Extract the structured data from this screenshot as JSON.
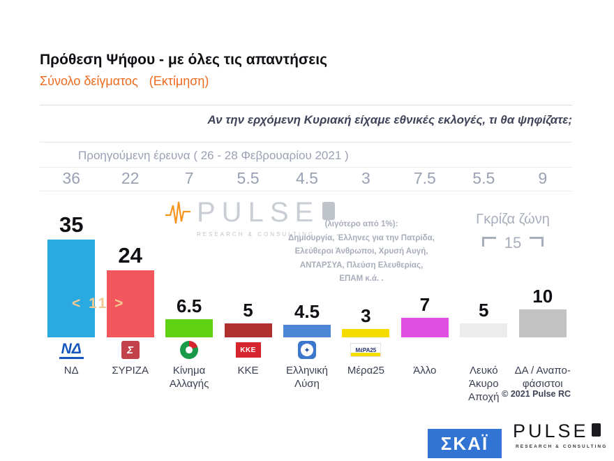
{
  "header": {
    "title": "Πρόθεση Ψήφου - με όλες τις απαντήσεις",
    "subtitle": "Σύνολο δείγματος",
    "estimate": "(Εκτίμηση)",
    "question": "Αν την ερχόμενη Κυριακή είχαμε εθνικές εκλογές, τι θα ψηφίζατε;"
  },
  "previous": {
    "label": "Προηγούμενη έρευνα ( 26 - 28  Φεβρουαρίου  2021 )"
  },
  "chart_data": {
    "type": "bar",
    "title": "Πρόθεση Ψήφου - με όλες τις απαντήσεις",
    "categories": [
      "ΝΔ",
      "ΣΥΡΙΖΑ",
      "Κίνημα\nΑλλαγής",
      "ΚΚΕ",
      "Ελληνική\nΛύση",
      "Μέρα25",
      "Άλλο",
      "Λευκό\nΆκυρο\nΑποχή",
      "ΔΑ / Αναπο-\nφάσιστοι"
    ],
    "series": [
      {
        "name": "Εκτίμηση",
        "values": [
          35,
          24,
          6.5,
          5,
          4.5,
          3,
          7,
          5,
          10
        ]
      },
      {
        "name": "Προηγούμενη έρευνα ( 26 - 28 Φεβρουαρίου 2021 )",
        "values": [
          36,
          22,
          7,
          5.5,
          4.5,
          3,
          7.5,
          5.5,
          9
        ]
      }
    ],
    "ylim": [
      0,
      40
    ],
    "grid": false,
    "legend": "none",
    "bar_colors": [
      "#29ABE2",
      "#F1575C",
      "#5FD313",
      "#B03030",
      "#4E86D6",
      "#F5DC00",
      "#DF4FE2",
      "#ECECEC",
      "#C2C2C2"
    ],
    "logos": [
      {
        "name": "nd-logo",
        "style": "logo-nd",
        "text": "ΝΔ"
      },
      {
        "name": "syriza-logo",
        "style": "logo-syriza",
        "text": "Σ"
      },
      {
        "name": "kinima-allagis-logo",
        "style": "logo-kinima",
        "text": ""
      },
      {
        "name": "kke-logo",
        "style": "logo-kke",
        "text": "ΚΚΕ"
      },
      {
        "name": "elliniki-lysi-logo",
        "style": "logo-elliniki",
        "text": "✦"
      },
      {
        "name": "mera25-logo",
        "style": "logo-mera",
        "text": "ΜέΡΑ25"
      },
      null,
      null,
      null
    ]
  },
  "annotations": {
    "gap": "< 11 >",
    "gray_zone_label": "Γκρίζα ζώνη",
    "gray_zone_value": "15",
    "small_parties": "(λιγότερο από 1%):\nΔημιουργία, Έλληνες για την Πατρίδα,\nΕλεύθεροι Άνθρωποι, Χρυσή Αυγή,\nΑΝΤΑΡΣΥΑ, Πλεύση Ελευθερίας,\nΕΠΑΜ   κ.ά. .",
    "copyright": "© 2021 Pulse RC"
  },
  "watermark": {
    "text": "PULSE",
    "sub": "RESEARCH & CONSULTING"
  },
  "footer": {
    "skai": "ΣΚΑΪ",
    "pulse_text": "PULSE",
    "pulse_sub": "RESEARCH & CONSULTING"
  }
}
